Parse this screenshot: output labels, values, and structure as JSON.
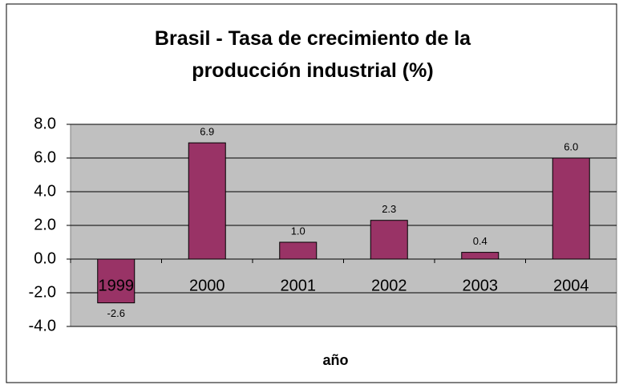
{
  "chart_data": {
    "type": "bar",
    "title": "Brasil - Tasa de crecimiento de la producción industrial (%)",
    "x_label": "año",
    "categories": [
      "1999",
      "2000",
      "2001",
      "2002",
      "2003",
      "2004"
    ],
    "values": [
      -2.6,
      6.9,
      1.0,
      2.3,
      0.4,
      6.0
    ],
    "value_labels": [
      "-2.6",
      "6.9",
      "1.0",
      "2.3",
      "0.4",
      "6.0"
    ],
    "color": "#993366",
    "plot_background": "#c0c0c0",
    "ylim": [
      -4,
      8
    ],
    "yticks": [
      {
        "value": -4,
        "label": "-4.0"
      },
      {
        "value": -2,
        "label": "-2.0"
      },
      {
        "value": 0,
        "label": "0.0"
      },
      {
        "value": 2,
        "label": "2.0"
      },
      {
        "value": 4,
        "label": "4.0"
      },
      {
        "value": 6,
        "label": "6.0"
      },
      {
        "value": 8,
        "label": "8.0"
      }
    ],
    "grid": true
  }
}
